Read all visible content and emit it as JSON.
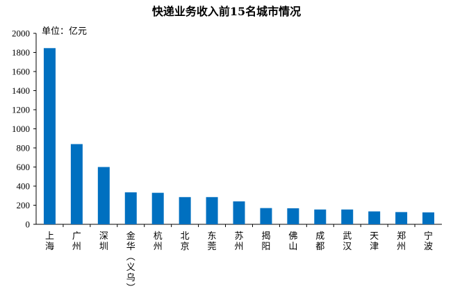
{
  "chart_data": {
    "type": "bar",
    "title": "快递业务收入前15名城市情况",
    "unit_label": "单位：亿元",
    "xlabel": "",
    "ylabel": "",
    "ylim": [
      0,
      2000
    ],
    "yticks": [
      0,
      200,
      400,
      600,
      800,
      1000,
      1200,
      1400,
      1600,
      1800,
      2000
    ],
    "grid": false,
    "legend": "none",
    "bar_color": "#0070C0",
    "categories": [
      "上海",
      "广州",
      "深圳",
      "金华（义乌）",
      "杭州",
      "北京",
      "东莞",
      "苏州",
      "揭阳",
      "佛山",
      "成都",
      "武汉",
      "天津",
      "郑州",
      "宁波"
    ],
    "values": [
      1845,
      840,
      600,
      335,
      330,
      285,
      285,
      240,
      170,
      168,
      155,
      155,
      135,
      128,
      125
    ]
  }
}
